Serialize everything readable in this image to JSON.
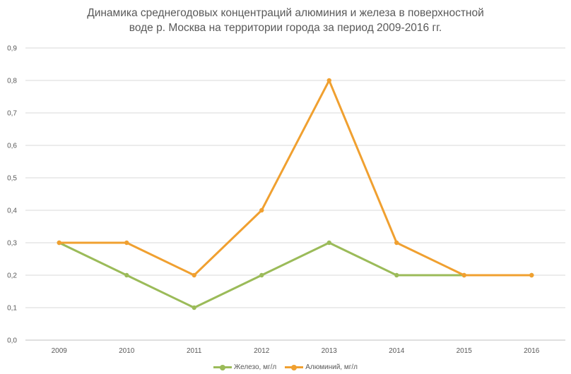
{
  "chart_data": {
    "type": "line",
    "title_lines": [
      "Динамика среднегодовых концентраций алюминия и железа в поверхностной",
      "воде р. Москва на территории города за период 2009-2016 гг."
    ],
    "categories": [
      "2009",
      "2010",
      "2011",
      "2012",
      "2013",
      "2014",
      "2015",
      "2016"
    ],
    "y_ticks": [
      "0,0",
      "0,1",
      "0,2",
      "0,3",
      "0,4",
      "0,5",
      "0,6",
      "0,7",
      "0,8",
      "0,9"
    ],
    "ylim": [
      0,
      0.9
    ],
    "grid": true,
    "legend_position": "bottom",
    "series": [
      {
        "name": "Железо, мг/л",
        "color": "#9bbb59",
        "values": [
          0.3,
          0.2,
          0.1,
          0.2,
          0.3,
          0.2,
          0.2,
          0.2
        ]
      },
      {
        "name": "Алюминий, мг/л",
        "color": "#f0a030",
        "values": [
          0.3,
          0.3,
          0.2,
          0.4,
          0.8,
          0.3,
          0.2,
          0.2
        ]
      }
    ]
  }
}
